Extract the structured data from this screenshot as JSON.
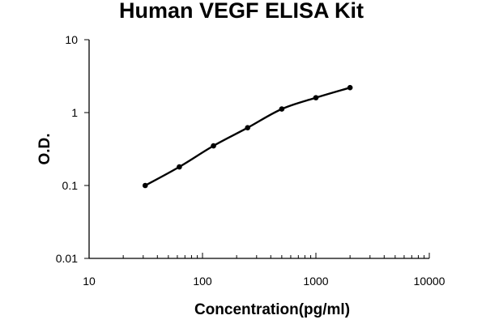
{
  "chart_data": {
    "type": "line",
    "title": "Human VEGF ELISA Kit",
    "xlabel": "Concentration(pg/ml)",
    "ylabel": "O.D.",
    "xscale": "log",
    "yscale": "log",
    "xlim": [
      10,
      10000
    ],
    "ylim": [
      0.01,
      10
    ],
    "x_tick_labels": [
      "10",
      "100",
      "1000",
      "10000"
    ],
    "y_tick_labels": [
      "0.01",
      "0.1",
      "1",
      "10"
    ],
    "grid": false,
    "legend": "none",
    "series": [
      {
        "x": [
          31.25,
          62.5,
          125,
          250,
          500,
          1000,
          2000
        ],
        "values": [
          0.1,
          0.18,
          0.35,
          0.62,
          1.12,
          1.6,
          2.2
        ]
      }
    ]
  }
}
